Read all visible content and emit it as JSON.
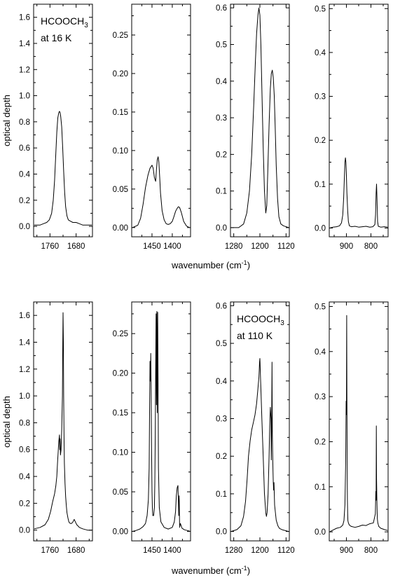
{
  "chart_data": [
    {
      "type": "line",
      "row": "top",
      "ylabel": "optical depth",
      "xlabel_text": "wavenumber (cm",
      "xlabel_sup": "-1",
      "xlabel_close": ")",
      "annotation": {
        "line1": "HCOOCH",
        "sub": "3",
        "line2": "at 16 K"
      },
      "panels": [
        {
          "xlim": [
            1810,
            1630
          ],
          "ylim": [
            -0.08,
            1.7
          ],
          "xticks": [
            1760,
            1680
          ],
          "xtick_labels": [
            "1760",
            "1680"
          ],
          "yticks": [
            0.0,
            0.2,
            0.4,
            0.6,
            0.8,
            1.0,
            1.2,
            1.4,
            1.6
          ],
          "ytick_labels": [
            "0.0",
            "0.2",
            "0.4",
            "0.6",
            "0.8",
            "1.0",
            "1.2",
            "1.4",
            "1.6"
          ],
          "x": [
            1808,
            1790,
            1780,
            1770,
            1762,
            1755,
            1750,
            1746,
            1742,
            1739,
            1736,
            1733,
            1731,
            1729,
            1727,
            1724,
            1721,
            1718,
            1715,
            1712,
            1708,
            1704,
            1698,
            1690,
            1680,
            1670,
            1660,
            1645,
            1632
          ],
          "y": [
            0.01,
            0.01,
            0.02,
            0.03,
            0.05,
            0.1,
            0.2,
            0.35,
            0.56,
            0.72,
            0.83,
            0.87,
            0.88,
            0.87,
            0.84,
            0.76,
            0.6,
            0.42,
            0.26,
            0.15,
            0.08,
            0.05,
            0.04,
            0.03,
            0.03,
            0.02,
            0.01,
            0.01,
            0.01
          ]
        },
        {
          "xlim": [
            1500,
            1355
          ],
          "ylim": [
            -0.012,
            0.29
          ],
          "xticks": [
            1450,
            1400
          ],
          "xtick_labels": [
            "1450",
            "1400"
          ],
          "yticks": [
            0.0,
            0.05,
            0.1,
            0.15,
            0.2,
            0.25
          ],
          "ytick_labels": [
            "0.00",
            "0.05",
            "0.10",
            "0.15",
            "0.20",
            "0.25"
          ],
          "x": [
            1498,
            1485,
            1478,
            1472,
            1466,
            1460,
            1455,
            1450,
            1447,
            1444,
            1441,
            1439,
            1437,
            1435,
            1433,
            1431,
            1429,
            1425,
            1420,
            1415,
            1410,
            1405,
            1400,
            1396,
            1392,
            1388,
            1385,
            1382,
            1378,
            1372,
            1365,
            1358
          ],
          "y": [
            0.0,
            0.003,
            0.012,
            0.03,
            0.052,
            0.068,
            0.077,
            0.081,
            0.077,
            0.065,
            0.06,
            0.075,
            0.088,
            0.092,
            0.085,
            0.065,
            0.045,
            0.022,
            0.01,
            0.005,
            0.004,
            0.005,
            0.008,
            0.014,
            0.021,
            0.025,
            0.027,
            0.026,
            0.02,
            0.008,
            0.002,
            0.0
          ]
        },
        {
          "xlim": [
            1290,
            1110
          ],
          "ylim": [
            -0.025,
            0.61
          ],
          "xticks": [
            1280,
            1200,
            1120
          ],
          "xtick_labels": [
            "1280",
            "1200",
            "1120"
          ],
          "yticks": [
            0.0,
            0.1,
            0.2,
            0.3,
            0.4,
            0.5,
            0.6
          ],
          "ytick_labels": [
            "0.0",
            "0.1",
            "0.2",
            "0.3",
            "0.4",
            "0.5",
            "0.6"
          ],
          "x": [
            1288,
            1265,
            1250,
            1240,
            1232,
            1225,
            1219,
            1214,
            1210,
            1206,
            1203,
            1200,
            1197,
            1194,
            1190,
            1186,
            1182,
            1179,
            1176,
            1172,
            1168,
            1165,
            1162,
            1159,
            1156,
            1153,
            1150,
            1146,
            1142,
            1136,
            1128,
            1112
          ],
          "y": [
            0.0,
            0.0,
            0.01,
            0.04,
            0.1,
            0.2,
            0.33,
            0.45,
            0.53,
            0.58,
            0.6,
            0.58,
            0.5,
            0.38,
            0.22,
            0.1,
            0.04,
            0.06,
            0.15,
            0.28,
            0.38,
            0.42,
            0.43,
            0.41,
            0.36,
            0.27,
            0.17,
            0.08,
            0.03,
            0.01,
            0.005,
            0.0
          ]
        },
        {
          "xlim": [
            970,
            730
          ],
          "ylim": [
            -0.02,
            0.51
          ],
          "xticks": [
            900,
            800
          ],
          "xtick_labels": [
            "900",
            "800"
          ],
          "yticks": [
            0.0,
            0.1,
            0.2,
            0.3,
            0.4,
            0.5
          ],
          "ytick_labels": [
            "0.0",
            "0.1",
            "0.2",
            "0.3",
            "0.4",
            "0.5"
          ],
          "x": [
            968,
            955,
            940,
            928,
            920,
            915,
            911,
            908,
            906,
            904,
            902,
            900,
            898,
            895,
            892,
            888,
            880,
            865,
            850,
            835,
            820,
            805,
            792,
            784,
            781,
            779,
            777,
            775,
            773,
            770,
            760,
            745,
            732
          ],
          "y": [
            0.0,
            0.002,
            0.003,
            0.005,
            0.012,
            0.03,
            0.07,
            0.12,
            0.15,
            0.16,
            0.15,
            0.12,
            0.08,
            0.04,
            0.015,
            0.005,
            0.003,
            0.004,
            0.002,
            0.003,
            0.004,
            0.002,
            0.003,
            0.008,
            0.03,
            0.08,
            0.1,
            0.06,
            0.015,
            0.004,
            0.002,
            0.003,
            0.002
          ]
        }
      ]
    },
    {
      "type": "line",
      "row": "bottom",
      "ylabel": "optical depth",
      "xlabel_text": "wavenumber (cm",
      "xlabel_sup": "-1",
      "xlabel_close": ")",
      "annotation": {
        "line1": "HCOOCH",
        "sub": "3",
        "line2": "at 110 K"
      },
      "panels": [
        {
          "xlim": [
            1810,
            1630
          ],
          "ylim": [
            -0.08,
            1.7
          ],
          "xticks": [
            1760,
            1680
          ],
          "xtick_labels": [
            "1760",
            "1680"
          ],
          "yticks": [
            0.0,
            0.2,
            0.4,
            0.6,
            0.8,
            1.0,
            1.2,
            1.4,
            1.6
          ],
          "ytick_labels": [
            "0.0",
            "0.2",
            "0.4",
            "0.6",
            "0.8",
            "1.0",
            "1.2",
            "1.4",
            "1.6"
          ],
          "x": [
            1808,
            1790,
            1775,
            1765,
            1758,
            1752,
            1746,
            1742,
            1739,
            1737,
            1735,
            1733,
            1731,
            1730,
            1729,
            1728,
            1726,
            1724,
            1722,
            1721,
            1720,
            1719,
            1718,
            1717,
            1716,
            1714,
            1712,
            1710,
            1708,
            1705,
            1702,
            1698,
            1694,
            1690,
            1686,
            1682,
            1678,
            1674,
            1670,
            1660,
            1645,
            1632
          ],
          "y": [
            0.01,
            0.02,
            0.04,
            0.08,
            0.14,
            0.21,
            0.27,
            0.33,
            0.4,
            0.5,
            0.58,
            0.66,
            0.71,
            0.6,
            0.68,
            0.56,
            0.6,
            0.75,
            1.0,
            1.3,
            1.62,
            1.4,
            1.0,
            0.7,
            0.5,
            0.35,
            0.25,
            0.18,
            0.13,
            0.09,
            0.06,
            0.05,
            0.05,
            0.06,
            0.08,
            0.06,
            0.04,
            0.03,
            0.02,
            0.01,
            0.0,
            0.0
          ]
        },
        {
          "xlim": [
            1500,
            1355
          ],
          "ylim": [
            -0.012,
            0.29
          ],
          "xticks": [
            1450,
            1400
          ],
          "xtick_labels": [
            "1450",
            "1400"
          ],
          "yticks": [
            0.0,
            0.05,
            0.1,
            0.15,
            0.2,
            0.25
          ],
          "ytick_labels": [
            "0.00",
            "0.05",
            "0.10",
            "0.15",
            "0.20",
            "0.25"
          ],
          "x": [
            1498,
            1490,
            1480,
            1472,
            1466,
            1462,
            1459,
            1457,
            1456,
            1455,
            1454,
            1453,
            1452,
            1451,
            1450,
            1449,
            1448,
            1446,
            1444,
            1443,
            1442,
            1441,
            1440,
            1439,
            1438,
            1437,
            1436,
            1435,
            1434,
            1432,
            1428,
            1420,
            1410,
            1400,
            1395,
            1392,
            1390,
            1388,
            1386,
            1385,
            1384,
            1383,
            1382,
            1380,
            1376,
            1370,
            1362,
            1356
          ],
          "y": [
            0.0,
            0.001,
            0.003,
            0.006,
            0.01,
            0.02,
            0.04,
            0.08,
            0.15,
            0.215,
            0.19,
            0.225,
            0.17,
            0.1,
            0.05,
            0.03,
            0.02,
            0.02,
            0.03,
            0.06,
            0.12,
            0.2,
            0.275,
            0.16,
            0.278,
            0.15,
            0.277,
            0.18,
            0.08,
            0.03,
            0.012,
            0.005,
            0.003,
            0.005,
            0.012,
            0.025,
            0.045,
            0.055,
            0.058,
            0.04,
            0.02,
            0.045,
            0.005,
            0.01,
            0.004,
            0.002,
            0.001,
            0.0
          ]
        },
        {
          "xlim": [
            1290,
            1110
          ],
          "ylim": [
            -0.025,
            0.61
          ],
          "xticks": [
            1280,
            1200,
            1120
          ],
          "xtick_labels": [
            "1280",
            "1200",
            "1120"
          ],
          "yticks": [
            0.0,
            0.1,
            0.2,
            0.3,
            0.4,
            0.5,
            0.6
          ],
          "ytick_labels": [
            "0.0",
            "0.1",
            "0.2",
            "0.3",
            "0.4",
            "0.5",
            "0.6"
          ],
          "x": [
            1288,
            1270,
            1258,
            1250,
            1244,
            1239,
            1235,
            1230,
            1225,
            1220,
            1215,
            1210,
            1206,
            1203,
            1201,
            1200,
            1199,
            1197,
            1194,
            1190,
            1186,
            1182,
            1180,
            1178,
            1175,
            1172,
            1170,
            1168,
            1166,
            1165,
            1164,
            1163,
            1162,
            1161,
            1160,
            1159,
            1158,
            1157,
            1155,
            1150,
            1145,
            1140,
            1130,
            1112
          ],
          "y": [
            0.0,
            0.005,
            0.015,
            0.04,
            0.08,
            0.14,
            0.2,
            0.24,
            0.27,
            0.29,
            0.31,
            0.34,
            0.38,
            0.41,
            0.45,
            0.46,
            0.43,
            0.38,
            0.3,
            0.2,
            0.1,
            0.05,
            0.04,
            0.05,
            0.1,
            0.2,
            0.28,
            0.33,
            0.3,
            0.19,
            0.28,
            0.45,
            0.27,
            0.21,
            0.16,
            0.13,
            0.11,
            0.13,
            0.07,
            0.03,
            0.015,
            0.008,
            0.004,
            0.0
          ]
        },
        {
          "xlim": [
            970,
            730
          ],
          "ylim": [
            -0.02,
            0.51
          ],
          "xticks": [
            900,
            800
          ],
          "xtick_labels": [
            "900",
            "800"
          ],
          "yticks": [
            0.0,
            0.1,
            0.2,
            0.3,
            0.4,
            0.5
          ],
          "ytick_labels": [
            "0.0",
            "0.1",
            "0.2",
            "0.3",
            "0.4",
            "0.5"
          ],
          "x": [
            968,
            955,
            940,
            925,
            915,
            910,
            906,
            903,
            901,
            900,
            899,
            898,
            897,
            896,
            895,
            894,
            892,
            888,
            880,
            865,
            850,
            835,
            820,
            805,
            790,
            782,
            780,
            779,
            778,
            777,
            776,
            775,
            774,
            772,
            768,
            760,
            745,
            732
          ],
          "y": [
            0.0,
            0.004,
            0.008,
            0.01,
            0.015,
            0.025,
            0.06,
            0.15,
            0.29,
            0.26,
            0.48,
            0.3,
            0.15,
            0.07,
            0.04,
            0.025,
            0.02,
            0.015,
            0.012,
            0.01,
            0.012,
            0.015,
            0.014,
            0.018,
            0.02,
            0.04,
            0.09,
            0.07,
            0.235,
            0.12,
            0.08,
            0.05,
            0.03,
            0.02,
            0.012,
            0.008,
            0.005,
            0.003
          ]
        }
      ]
    }
  ]
}
